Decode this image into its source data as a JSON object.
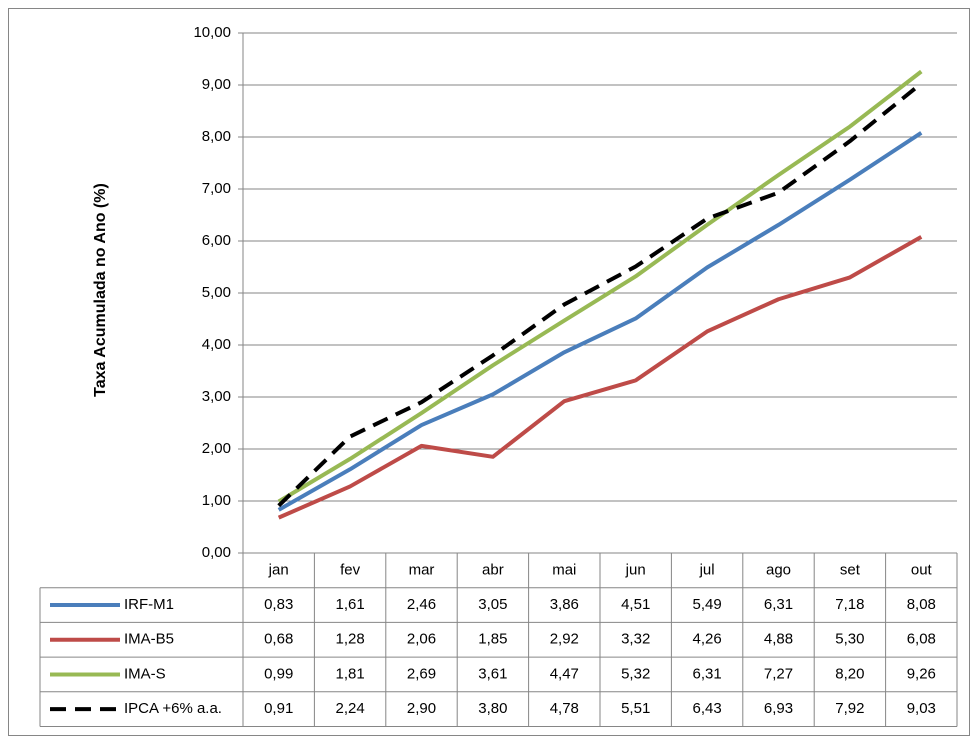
{
  "chart_data": {
    "type": "line",
    "y_label": "Taxa Acumulada no Ano (%)",
    "categories": [
      "jan",
      "fev",
      "mar",
      "abr",
      "mai",
      "jun",
      "jul",
      "ago",
      "set",
      "out"
    ],
    "ylim": [
      0,
      10
    ],
    "yticks": [
      {
        "value": 0,
        "label": "0,00"
      },
      {
        "value": 1,
        "label": "1,00"
      },
      {
        "value": 2,
        "label": "2,00"
      },
      {
        "value": 3,
        "label": "3,00"
      },
      {
        "value": 4,
        "label": "4,00"
      },
      {
        "value": 5,
        "label": "5,00"
      },
      {
        "value": 6,
        "label": "6,00"
      },
      {
        "value": 7,
        "label": "7,00"
      },
      {
        "value": 8,
        "label": "8,00"
      },
      {
        "value": 9,
        "label": "9,00"
      },
      {
        "value": 10,
        "label": "10,00"
      }
    ],
    "grid": true,
    "series": [
      {
        "name": "IRF-M1",
        "color": "#4a7ebb",
        "dash": false,
        "values": [
          0.83,
          1.61,
          2.46,
          3.05,
          3.86,
          4.51,
          5.49,
          6.31,
          7.18,
          8.08
        ],
        "value_labels": [
          "0,83",
          "1,61",
          "2,46",
          "3,05",
          "3,86",
          "4,51",
          "5,49",
          "6,31",
          "7,18",
          "8,08"
        ]
      },
      {
        "name": "IMA-B5",
        "color": "#be4b48",
        "dash": false,
        "values": [
          0.68,
          1.28,
          2.06,
          1.85,
          2.92,
          3.32,
          4.26,
          4.88,
          5.3,
          6.08
        ],
        "value_labels": [
          "0,68",
          "1,28",
          "2,06",
          "1,85",
          "2,92",
          "3,32",
          "4,26",
          "4,88",
          "5,30",
          "6,08"
        ]
      },
      {
        "name": "IMA-S",
        "color": "#98b954",
        "dash": false,
        "values": [
          0.99,
          1.81,
          2.69,
          3.61,
          4.47,
          5.32,
          6.31,
          7.27,
          8.2,
          9.26
        ],
        "value_labels": [
          "0,99",
          "1,81",
          "2,69",
          "3,61",
          "4,47",
          "5,32",
          "6,31",
          "7,27",
          "8,20",
          "9,26"
        ]
      },
      {
        "name": "IPCA +6% a.a.",
        "color": "#000000",
        "dash": true,
        "values": [
          0.91,
          2.24,
          2.9,
          3.8,
          4.78,
          5.51,
          6.43,
          6.93,
          7.92,
          9.03
        ],
        "value_labels": [
          "0,91",
          "2,24",
          "2,90",
          "3,80",
          "4,78",
          "5,51",
          "6,43",
          "6,93",
          "7,92",
          "9,03"
        ]
      }
    ]
  }
}
